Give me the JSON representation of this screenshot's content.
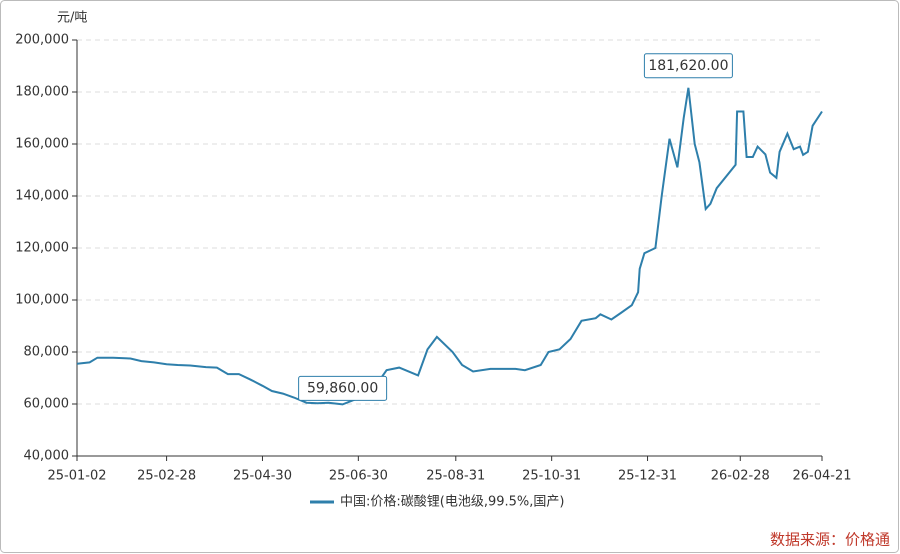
{
  "chart_data": {
    "type": "line",
    "y_unit": "元/吨",
    "x": [
      "25-01-02",
      "25-01-10",
      "25-01-15",
      "25-01-25",
      "25-02-05",
      "25-02-12",
      "25-02-20",
      "25-02-28",
      "25-03-07",
      "25-03-15",
      "25-03-25",
      "25-04-01",
      "25-04-08",
      "25-04-15",
      "25-04-22",
      "25-04-30",
      "25-05-06",
      "25-05-13",
      "25-05-20",
      "25-05-28",
      "25-06-04",
      "25-06-11",
      "25-06-20",
      "25-06-27",
      "25-07-04",
      "25-07-11",
      "25-07-18",
      "25-07-26",
      "25-08-07",
      "25-08-13",
      "25-08-19",
      "25-08-29",
      "25-09-04",
      "25-09-11",
      "25-09-22",
      "25-10-08",
      "25-10-14",
      "25-10-24",
      "25-10-29",
      "25-11-05",
      "25-11-12",
      "25-11-19",
      "25-11-28",
      "25-12-01",
      "25-12-08",
      "25-12-14",
      "25-12-21",
      "25-12-25",
      "25-12-26",
      "25-12-29",
      "26-01-05",
      "26-01-09",
      "26-01-14",
      "26-01-19",
      "26-01-23",
      "26-01-26",
      "26-01-30",
      "26-02-02",
      "26-02-06",
      "26-02-09",
      "26-02-13",
      "26-02-25",
      "26-02-26",
      "26-03-02",
      "26-03-04",
      "26-03-08",
      "26-03-11",
      "26-03-16",
      "26-03-19",
      "26-03-23",
      "26-03-25",
      "26-03-30",
      "26-04-03",
      "26-04-07",
      "26-04-09",
      "26-04-12",
      "26-04-15",
      "26-04-21"
    ],
    "series": [
      {
        "name": "中国:价格:碳酸锂(电池级,99.5%,国产)",
        "color": "#2e7fab",
        "values": [
          75500,
          76000,
          77800,
          77800,
          77500,
          76500,
          76000,
          75300,
          75000,
          74800,
          74200,
          74000,
          71500,
          71500,
          69500,
          67000,
          65000,
          64000,
          62500,
          60500,
          60300,
          60500,
          59860,
          61500,
          63000,
          67000,
          73000,
          74000,
          71000,
          81000,
          85800,
          80000,
          75000,
          72500,
          73500,
          73500,
          73000,
          75000,
          80000,
          81000,
          85000,
          92000,
          93000,
          94500,
          92500,
          95000,
          98000,
          103000,
          112000,
          118000,
          120000,
          140000,
          162000,
          151000,
          170000,
          181620,
          160000,
          153000,
          135000,
          137000,
          143000,
          152000,
          172500,
          172500,
          155000,
          155000,
          159000,
          156000,
          149000,
          147000,
          157000,
          164000,
          158000,
          159000,
          155800,
          157000,
          167000,
          172500
        ]
      }
    ],
    "xlim": [
      "25-01-02",
      "26-04-21"
    ],
    "xticks": [
      "25-01-02",
      "25-02-28",
      "25-04-30",
      "25-06-30",
      "25-08-31",
      "25-10-31",
      "25-12-31",
      "26-02-28",
      "26-04-21"
    ],
    "ylim": [
      40000,
      200000
    ],
    "yticks": [
      {
        "value": 40000,
        "label": "40,000"
      },
      {
        "value": 60000,
        "label": "60,000"
      },
      {
        "value": 80000,
        "label": "80,000"
      },
      {
        "value": 100000,
        "label": "100,000"
      },
      {
        "value": 120000,
        "label": "120,000"
      },
      {
        "value": 140000,
        "label": "140,000"
      },
      {
        "value": 160000,
        "label": "160,000"
      },
      {
        "value": 180000,
        "label": "180,000"
      },
      {
        "value": 200000,
        "label": "200,000"
      }
    ],
    "grid": true,
    "annotations": [
      {
        "x": "26-01-26",
        "y": 181620,
        "label": "181,620.00"
      },
      {
        "x": "25-06-20",
        "y": 59860,
        "label": "59,860.00"
      }
    ],
    "source": "数据来源：价格通"
  }
}
